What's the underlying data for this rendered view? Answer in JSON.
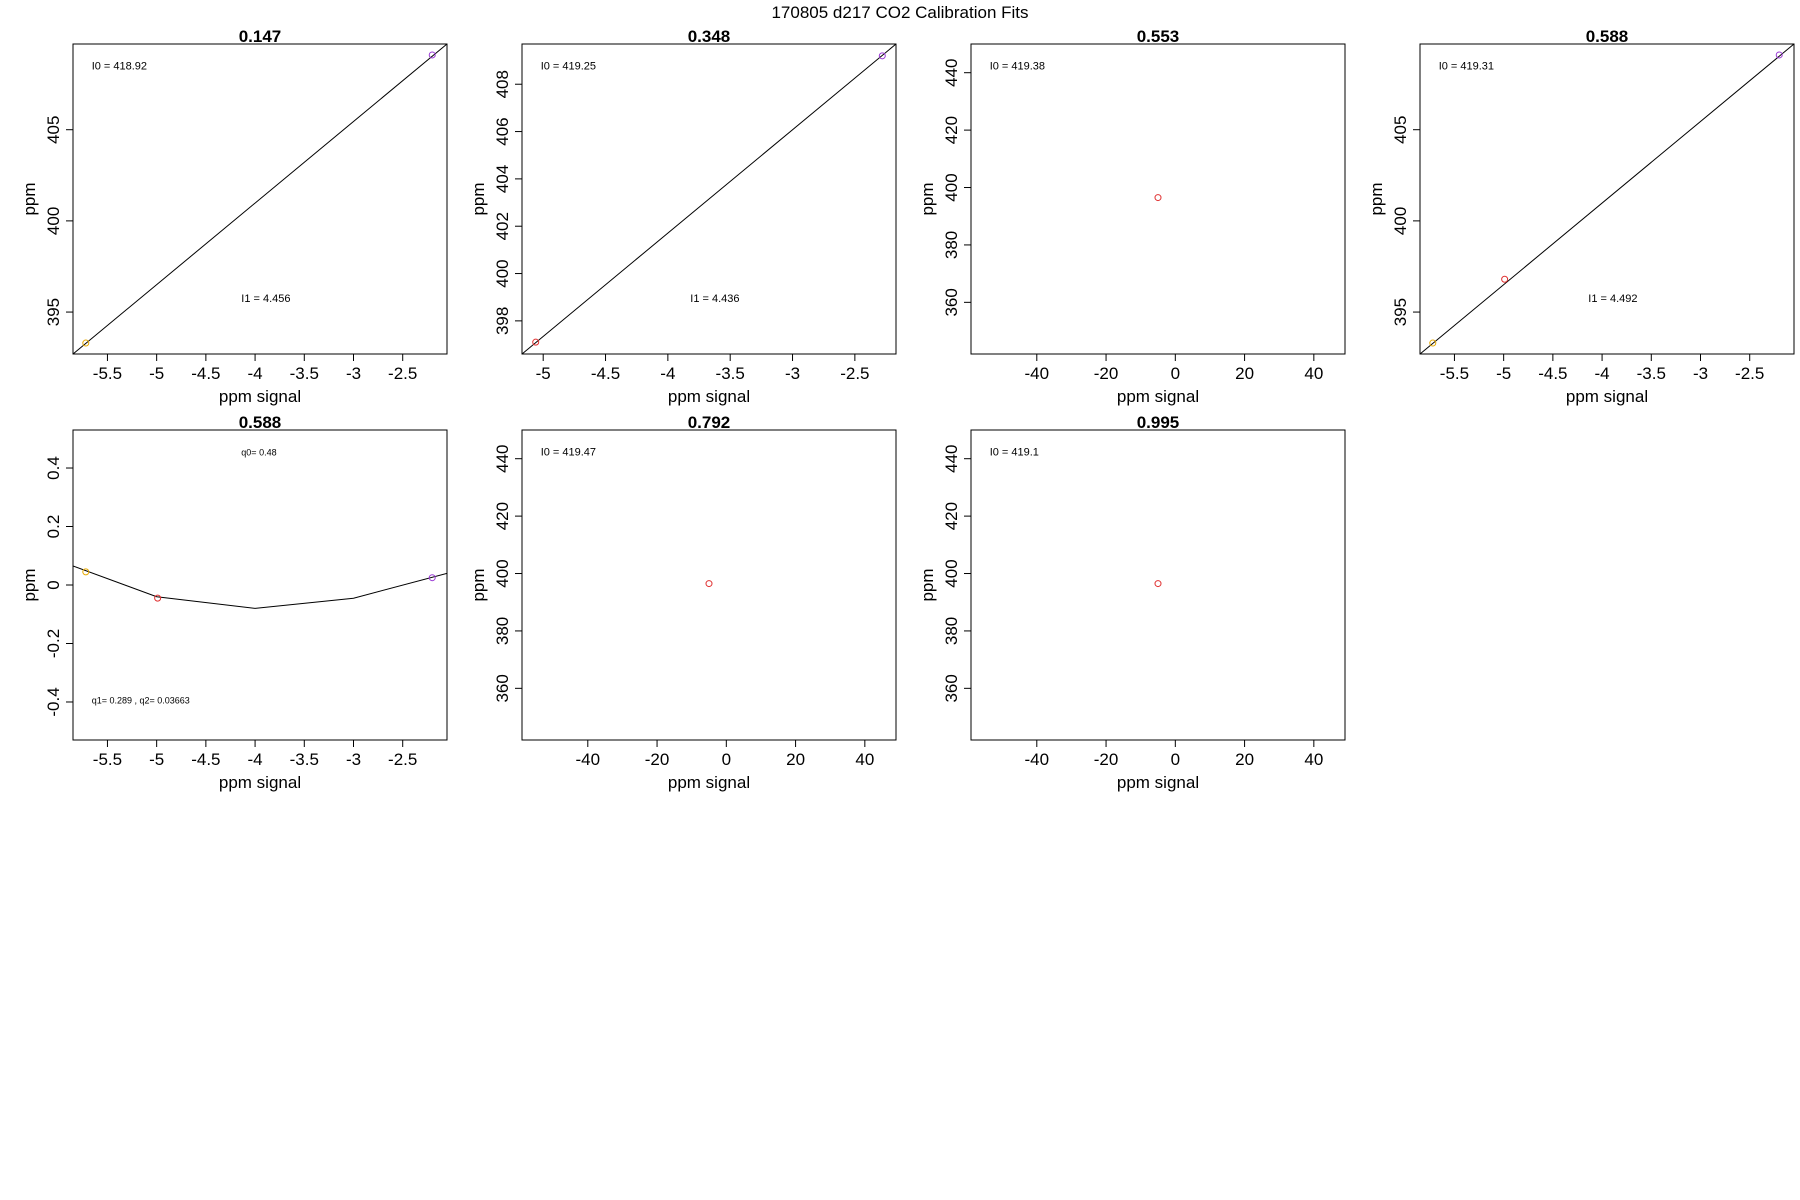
{
  "figure": {
    "title": "170805   d217   CO2 Calibration Fits"
  },
  "chart_data": [
    {
      "type": "scatter",
      "title": "0.147",
      "xlabel": "ppm signal",
      "ylabel": "ppm",
      "xlim": [
        -5.85,
        -2.05
      ],
      "ylim": [
        392.7,
        409.7
      ],
      "xticks": [
        -5.5,
        -5.0,
        -4.5,
        -4.0,
        -3.5,
        -3.0,
        -2.5
      ],
      "yticks": [
        395,
        400,
        405
      ],
      "points": [
        {
          "x": -5.72,
          "y": 393.3,
          "color": "#e6a800"
        },
        {
          "x": -2.2,
          "y": 409.1,
          "color": "#9a3ad4"
        }
      ],
      "fit_line": [
        {
          "x": -5.85,
          "y": 392.7
        },
        {
          "x": -2.05,
          "y": 409.7
        }
      ],
      "annotations": [
        "I0 =  418.92",
        "I1 =  4.456"
      ]
    },
    {
      "type": "scatter",
      "title": "0.348",
      "xlabel": "ppm signal",
      "ylabel": "ppm",
      "xlim": [
        -5.17,
        -2.17
      ],
      "ylim": [
        396.6,
        409.7
      ],
      "xticks": [
        -5.0,
        -4.5,
        -4.0,
        -3.5,
        -3.0,
        -2.5
      ],
      "yticks": [
        398,
        400,
        402,
        404,
        406,
        408
      ],
      "points": [
        {
          "x": -5.06,
          "y": 397.1,
          "color": "#e03030"
        },
        {
          "x": -2.28,
          "y": 409.2,
          "color": "#9a3ad4"
        }
      ],
      "fit_line": [
        {
          "x": -5.17,
          "y": 396.6
        },
        {
          "x": -2.17,
          "y": 409.7
        }
      ],
      "annotations": [
        "I0 =  419.25",
        "I1 =  4.436"
      ]
    },
    {
      "type": "scatter",
      "title": "0.553",
      "xlabel": "ppm signal",
      "ylabel": "ppm",
      "xlim": [
        -59,
        49
      ],
      "ylim": [
        342,
        450
      ],
      "xticks": [
        -40,
        -20,
        0,
        20,
        40
      ],
      "yticks": [
        360,
        380,
        400,
        420,
        440
      ],
      "points": [
        {
          "x": -5,
          "y": 396.5,
          "color": "#e03030"
        }
      ],
      "annotations": [
        "I0 =  419.38"
      ]
    },
    {
      "type": "scatter",
      "title": "0.588",
      "xlabel": "ppm signal",
      "ylabel": "ppm",
      "xlim": [
        -5.85,
        -2.05
      ],
      "ylim": [
        392.7,
        409.7
      ],
      "xticks": [
        -5.5,
        -5.0,
        -4.5,
        -4.0,
        -3.5,
        -3.0,
        -2.5
      ],
      "yticks": [
        395,
        400,
        405
      ],
      "points": [
        {
          "x": -5.72,
          "y": 393.3,
          "color": "#e6a800"
        },
        {
          "x": -4.99,
          "y": 396.8,
          "color": "#e03030"
        },
        {
          "x": -2.2,
          "y": 409.1,
          "color": "#9a3ad4"
        }
      ],
      "fit_line": [
        {
          "x": -5.85,
          "y": 392.7
        },
        {
          "x": -2.05,
          "y": 409.7
        }
      ],
      "annotations": [
        "I0 =  419.31",
        "I1 =  4.492"
      ]
    },
    {
      "type": "line",
      "title": "0.588",
      "xlabel": "ppm signal",
      "ylabel": "ppm",
      "xlim": [
        -5.85,
        -2.05
      ],
      "ylim": [
        -0.53,
        0.53
      ],
      "xticks": [
        -5.5,
        -5.0,
        -4.5,
        -4.0,
        -3.5,
        -3.0,
        -2.5
      ],
      "yticks": [
        -0.4,
        -0.2,
        0.0,
        0.2,
        0.4
      ],
      "points": [
        {
          "x": -5.72,
          "y": 0.045,
          "color": "#e6a800"
        },
        {
          "x": -4.99,
          "y": -0.045,
          "color": "#e03030"
        },
        {
          "x": -2.2,
          "y": 0.025,
          "color": "#9a3ad4"
        }
      ],
      "fit_line": [
        {
          "x": -5.85,
          "y": 0.065
        },
        {
          "x": -5.0,
          "y": -0.04
        },
        {
          "x": -4.0,
          "y": -0.08
        },
        {
          "x": -3.0,
          "y": -0.045
        },
        {
          "x": -2.05,
          "y": 0.04
        }
      ],
      "annotations": [
        "q0= 0.48",
        "q1= 0.289 , q2= 0.03663"
      ]
    },
    {
      "type": "scatter",
      "title": "0.792",
      "xlabel": "ppm signal",
      "ylabel": "ppm",
      "xlim": [
        -59,
        49
      ],
      "ylim": [
        342,
        450
      ],
      "xticks": [
        -40,
        -20,
        0,
        20,
        40
      ],
      "yticks": [
        360,
        380,
        400,
        420,
        440
      ],
      "points": [
        {
          "x": -5,
          "y": 396.5,
          "color": "#e03030"
        }
      ],
      "annotations": [
        "I0 =  419.47"
      ]
    },
    {
      "type": "scatter",
      "title": "0.995",
      "xlabel": "ppm signal",
      "ylabel": "ppm",
      "xlim": [
        -59,
        49
      ],
      "ylim": [
        342,
        450
      ],
      "xticks": [
        -40,
        -20,
        0,
        20,
        40
      ],
      "yticks": [
        360,
        380,
        400,
        420,
        440
      ],
      "points": [
        {
          "x": -5,
          "y": 396.5,
          "color": "#e03030"
        }
      ],
      "annotations": [
        "I0 =  419.1"
      ]
    }
  ]
}
